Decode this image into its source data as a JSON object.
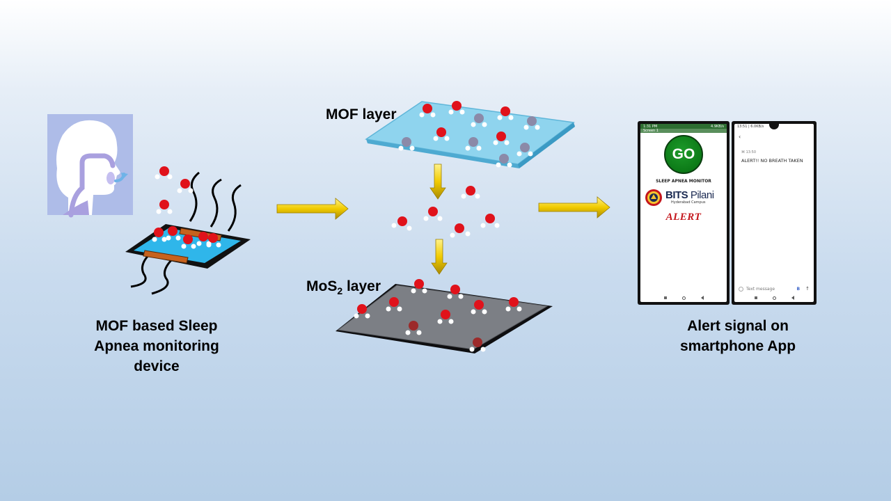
{
  "captions": {
    "device": [
      "MOF based Sleep",
      "Apnea monitoring",
      "device"
    ],
    "phone": [
      "Alert signal on",
      "smartphone App"
    ]
  },
  "layers": {
    "mof": "MOF layer",
    "mos2_prefix": "MoS",
    "mos2_sub": "2",
    "mos2_suffix": " layer"
  },
  "phone1": {
    "status_left": "1:31 PM",
    "status_right": "4.9KB/s",
    "app_title": "Screen 1",
    "go_label": "GO",
    "monitor_title": "SLEEP APNEA MONITOR",
    "logo_name_bold": "BITS",
    "logo_name_light": " Pilani",
    "logo_sub": "Hyderabad Campus",
    "alert": "ALERT"
  },
  "phone2": {
    "status_left": "13:51 | 6.0KB/s",
    "time": "⌘ 13:50",
    "message": "ALERT!! NO BREATH TAKEN",
    "input_placeholder": "Text message",
    "send_label": "B",
    "up_label": "↑"
  },
  "colors": {
    "molecule_red": "#e0121b",
    "hydrogen_white": "#ffffff",
    "arrow_yellow": "#f1cb00",
    "mof_layer": "#8fd4ee",
    "mos2_layer": "#7c7f85",
    "go_green": "#0c7a17",
    "alert_red": "#c4161c",
    "profile_purple": "#a9a0df"
  },
  "icons": {
    "profile": "human-profile-icon",
    "arrow": "right-arrow-icon",
    "down_arrow": "down-arrow-icon",
    "molecule": "water-molecule-icon"
  }
}
